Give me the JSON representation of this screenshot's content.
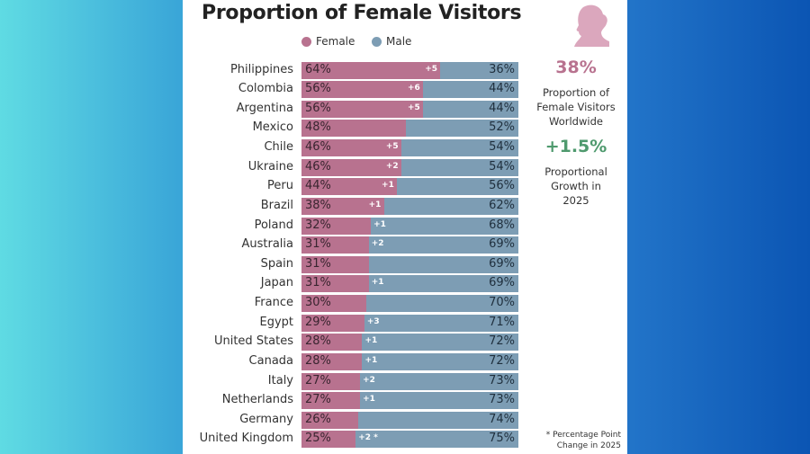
{
  "colors": {
    "female": "#b8728f",
    "male": "#7d9db4",
    "growth": "#4f9a6e"
  },
  "chart_data": {
    "type": "bar",
    "stacked": true,
    "orientation": "horizontal",
    "title": "Proportion of Female Visitors",
    "legend": [
      "Female",
      "Male"
    ],
    "legend_position": "top",
    "categories": [
      "Philippines",
      "Colombia",
      "Argentina",
      "Mexico",
      "Chile",
      "Ukraine",
      "Peru",
      "Brazil",
      "Poland",
      "Australia",
      "Spain",
      "Japan",
      "France",
      "Egypt",
      "United States",
      "Canada",
      "Italy",
      "Netherlands",
      "Germany",
      "United Kingdom"
    ],
    "series": [
      {
        "name": "Female",
        "values": [
          64,
          56,
          56,
          48,
          46,
          46,
          44,
          38,
          32,
          31,
          31,
          31,
          30,
          29,
          28,
          28,
          27,
          27,
          26,
          25
        ]
      },
      {
        "name": "Male",
        "values": [
          36,
          44,
          44,
          52,
          54,
          54,
          56,
          62,
          68,
          69,
          69,
          69,
          70,
          71,
          72,
          72,
          73,
          73,
          74,
          75
        ]
      }
    ],
    "change_labels": [
      "+5",
      "+6",
      "+5",
      "",
      "+5",
      "+2",
      "+1",
      "+1",
      "+1",
      "+2",
      "",
      "+1",
      "",
      "+3",
      "+1",
      "+1",
      "+2",
      "+1",
      "",
      "+2 *"
    ]
  },
  "side": {
    "icon": "woman-silhouette-icon",
    "stat1": "38%",
    "stat1_label": "Proportion of Female Visitors Worldwide",
    "stat2": "+1.5%",
    "stat2_label": "Proportional Growth in 2025",
    "footnote": "* Percentage Point Change in 2025"
  }
}
